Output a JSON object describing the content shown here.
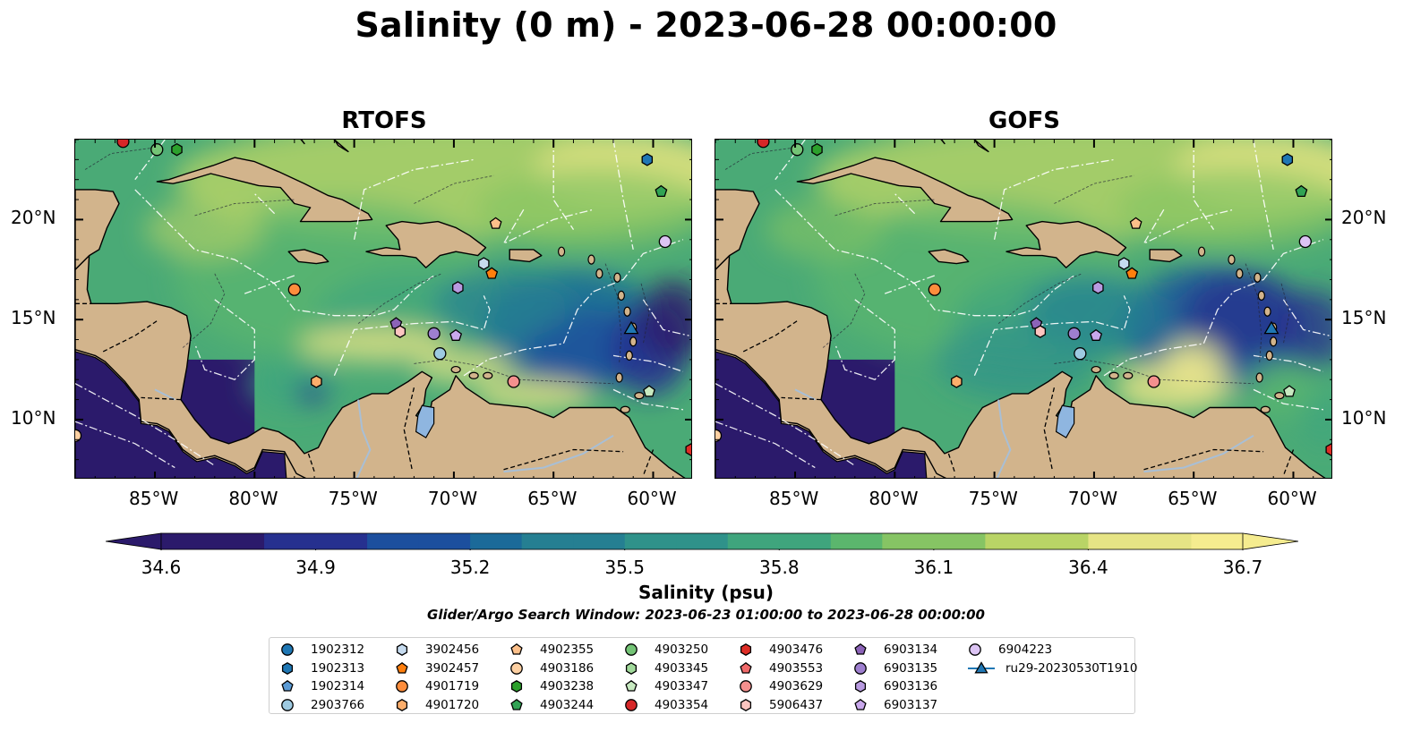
{
  "title": "Salinity (0 m) - 2023-06-28 00:00:00",
  "panels": [
    {
      "title": "RTOFS"
    },
    {
      "title": "GOFS"
    }
  ],
  "axes": {
    "lon_ticks": [
      "85°W",
      "80°W",
      "75°W",
      "70°W",
      "65°W",
      "60°W"
    ],
    "lon_values": [
      -85,
      -80,
      -75,
      -70,
      -65,
      -60
    ],
    "lat_ticks": [
      "20°N",
      "15°N",
      "10°N"
    ],
    "lat_values": [
      20,
      15,
      10
    ],
    "lon_range": [
      -89,
      -58
    ],
    "lat_range": [
      7,
      24
    ]
  },
  "colorbar": {
    "label": "Salinity (psu)",
    "ticks": [
      "34.6",
      "34.9",
      "35.2",
      "35.5",
      "35.8",
      "36.1",
      "36.4",
      "36.7"
    ],
    "tick_values": [
      34.6,
      34.9,
      35.2,
      35.5,
      35.8,
      36.1,
      36.4,
      36.7
    ],
    "range": [
      34.6,
      36.7
    ],
    "extend": "both",
    "colors": [
      "#2b1a6b",
      "#26308f",
      "#1c4f9e",
      "#1b6a99",
      "#257f92",
      "#2f928a",
      "#3fa57d",
      "#5bb66d",
      "#86c464",
      "#b9d466",
      "#e6e485",
      "#f5ec8f"
    ]
  },
  "search_window": "Glider/Argo Search Window: 2023-06-23 01:00:00 to 2023-06-28 00:00:00",
  "colors": {
    "land": "#d2b48c",
    "lake": "#8fb6e0",
    "river": "#a8bfd6"
  },
  "legend": [
    {
      "id": "1902312",
      "marker": "circle",
      "color": "#1f77b4"
    },
    {
      "id": "1902313",
      "marker": "hexagon",
      "color": "#1f77b4"
    },
    {
      "id": "1902314",
      "marker": "pentagon",
      "color": "#5b9bd5"
    },
    {
      "id": "2903766",
      "marker": "circle",
      "color": "#9ecae1"
    },
    {
      "id": "3902456",
      "marker": "hexagon",
      "color": "#c6dbef"
    },
    {
      "id": "3902457",
      "marker": "pentagon",
      "color": "#ff7f0e"
    },
    {
      "id": "4901719",
      "marker": "circle",
      "color": "#fd8d3c"
    },
    {
      "id": "4901720",
      "marker": "hexagon",
      "color": "#fdae6b"
    },
    {
      "id": "4902355",
      "marker": "pentagon",
      "color": "#fdc08a"
    },
    {
      "id": "4903186",
      "marker": "circle",
      "color": "#fdd0a2"
    },
    {
      "id": "4903238",
      "marker": "hexagon",
      "color": "#2ca02c"
    },
    {
      "id": "4903244",
      "marker": "pentagon",
      "color": "#31a354"
    },
    {
      "id": "4903250",
      "marker": "circle",
      "color": "#74c476"
    },
    {
      "id": "4903345",
      "marker": "hexagon",
      "color": "#a1d99b"
    },
    {
      "id": "4903347",
      "marker": "pentagon",
      "color": "#c7e9c0"
    },
    {
      "id": "4903354",
      "marker": "circle",
      "color": "#d62728"
    },
    {
      "id": "4903476",
      "marker": "hexagon",
      "color": "#de2d26"
    },
    {
      "id": "4903553",
      "marker": "pentagon",
      "color": "#f06a6a"
    },
    {
      "id": "4903629",
      "marker": "circle",
      "color": "#f4908e"
    },
    {
      "id": "5906437",
      "marker": "hexagon",
      "color": "#fcc5c0"
    },
    {
      "id": "6903134",
      "marker": "pentagon",
      "color": "#8c63b8"
    },
    {
      "id": "6903135",
      "marker": "circle",
      "color": "#9e7fcf"
    },
    {
      "id": "6903136",
      "marker": "hexagon",
      "color": "#b89ae0"
    },
    {
      "id": "6903137",
      "marker": "pentagon",
      "color": "#c9a8ec"
    },
    {
      "id": "6904223",
      "marker": "circle",
      "color": "#dcc4f4"
    },
    {
      "id": "ru29-20230530T1910",
      "marker": "triangle",
      "color": "#1f77b4"
    }
  ],
  "floats": [
    {
      "lon": -86.6,
      "lat": 23.9,
      "color": "#d62728",
      "marker": "circle"
    },
    {
      "lon": -84.9,
      "lat": 23.5,
      "color": "#74c476",
      "marker": "circle"
    },
    {
      "lon": -83.9,
      "lat": 23.5,
      "color": "#2ca02c",
      "marker": "hexagon"
    },
    {
      "lon": -60.3,
      "lat": 23.0,
      "color": "#1f77b4",
      "marker": "hexagon"
    },
    {
      "lon": -59.6,
      "lat": 21.4,
      "color": "#31a354",
      "marker": "pentagon"
    },
    {
      "lon": -67.9,
      "lat": 19.8,
      "color": "#fdc08a",
      "marker": "pentagon"
    },
    {
      "lon": -59.4,
      "lat": 18.9,
      "color": "#dcc4f4",
      "marker": "circle"
    },
    {
      "lon": -68.5,
      "lat": 17.8,
      "color": "#c6dbef",
      "marker": "hexagon"
    },
    {
      "lon": -68.1,
      "lat": 17.3,
      "color": "#ff7f0e",
      "marker": "pentagon"
    },
    {
      "lon": -78.0,
      "lat": 16.5,
      "color": "#fd8d3c",
      "marker": "circle"
    },
    {
      "lon": -69.8,
      "lat": 16.6,
      "color": "#b89ae0",
      "marker": "hexagon"
    },
    {
      "lon": -72.9,
      "lat": 14.8,
      "color": "#8c63b8",
      "marker": "pentagon"
    },
    {
      "lon": -72.7,
      "lat": 14.4,
      "color": "#fcc5c0",
      "marker": "hexagon"
    },
    {
      "lon": -71.0,
      "lat": 14.3,
      "color": "#9e7fcf",
      "marker": "circle"
    },
    {
      "lon": -69.9,
      "lat": 14.2,
      "color": "#c9a8ec",
      "marker": "pentagon"
    },
    {
      "lon": -70.7,
      "lat": 13.3,
      "color": "#9ecae1",
      "marker": "circle"
    },
    {
      "lon": -76.9,
      "lat": 11.9,
      "color": "#fdae6b",
      "marker": "hexagon"
    },
    {
      "lon": -67.0,
      "lat": 11.9,
      "color": "#f4908e",
      "marker": "circle"
    },
    {
      "lon": -60.2,
      "lat": 11.4,
      "color": "#c7e9c0",
      "marker": "pentagon"
    },
    {
      "lon": -58.1,
      "lat": 8.5,
      "color": "#de2d26",
      "marker": "hexagon"
    },
    {
      "lon": -89.0,
      "lat": 9.2,
      "color": "#fdd0a2",
      "marker": "circle"
    }
  ],
  "glider": {
    "lon": -61.1,
    "lat": 14.5,
    "color": "#1f77b4"
  }
}
